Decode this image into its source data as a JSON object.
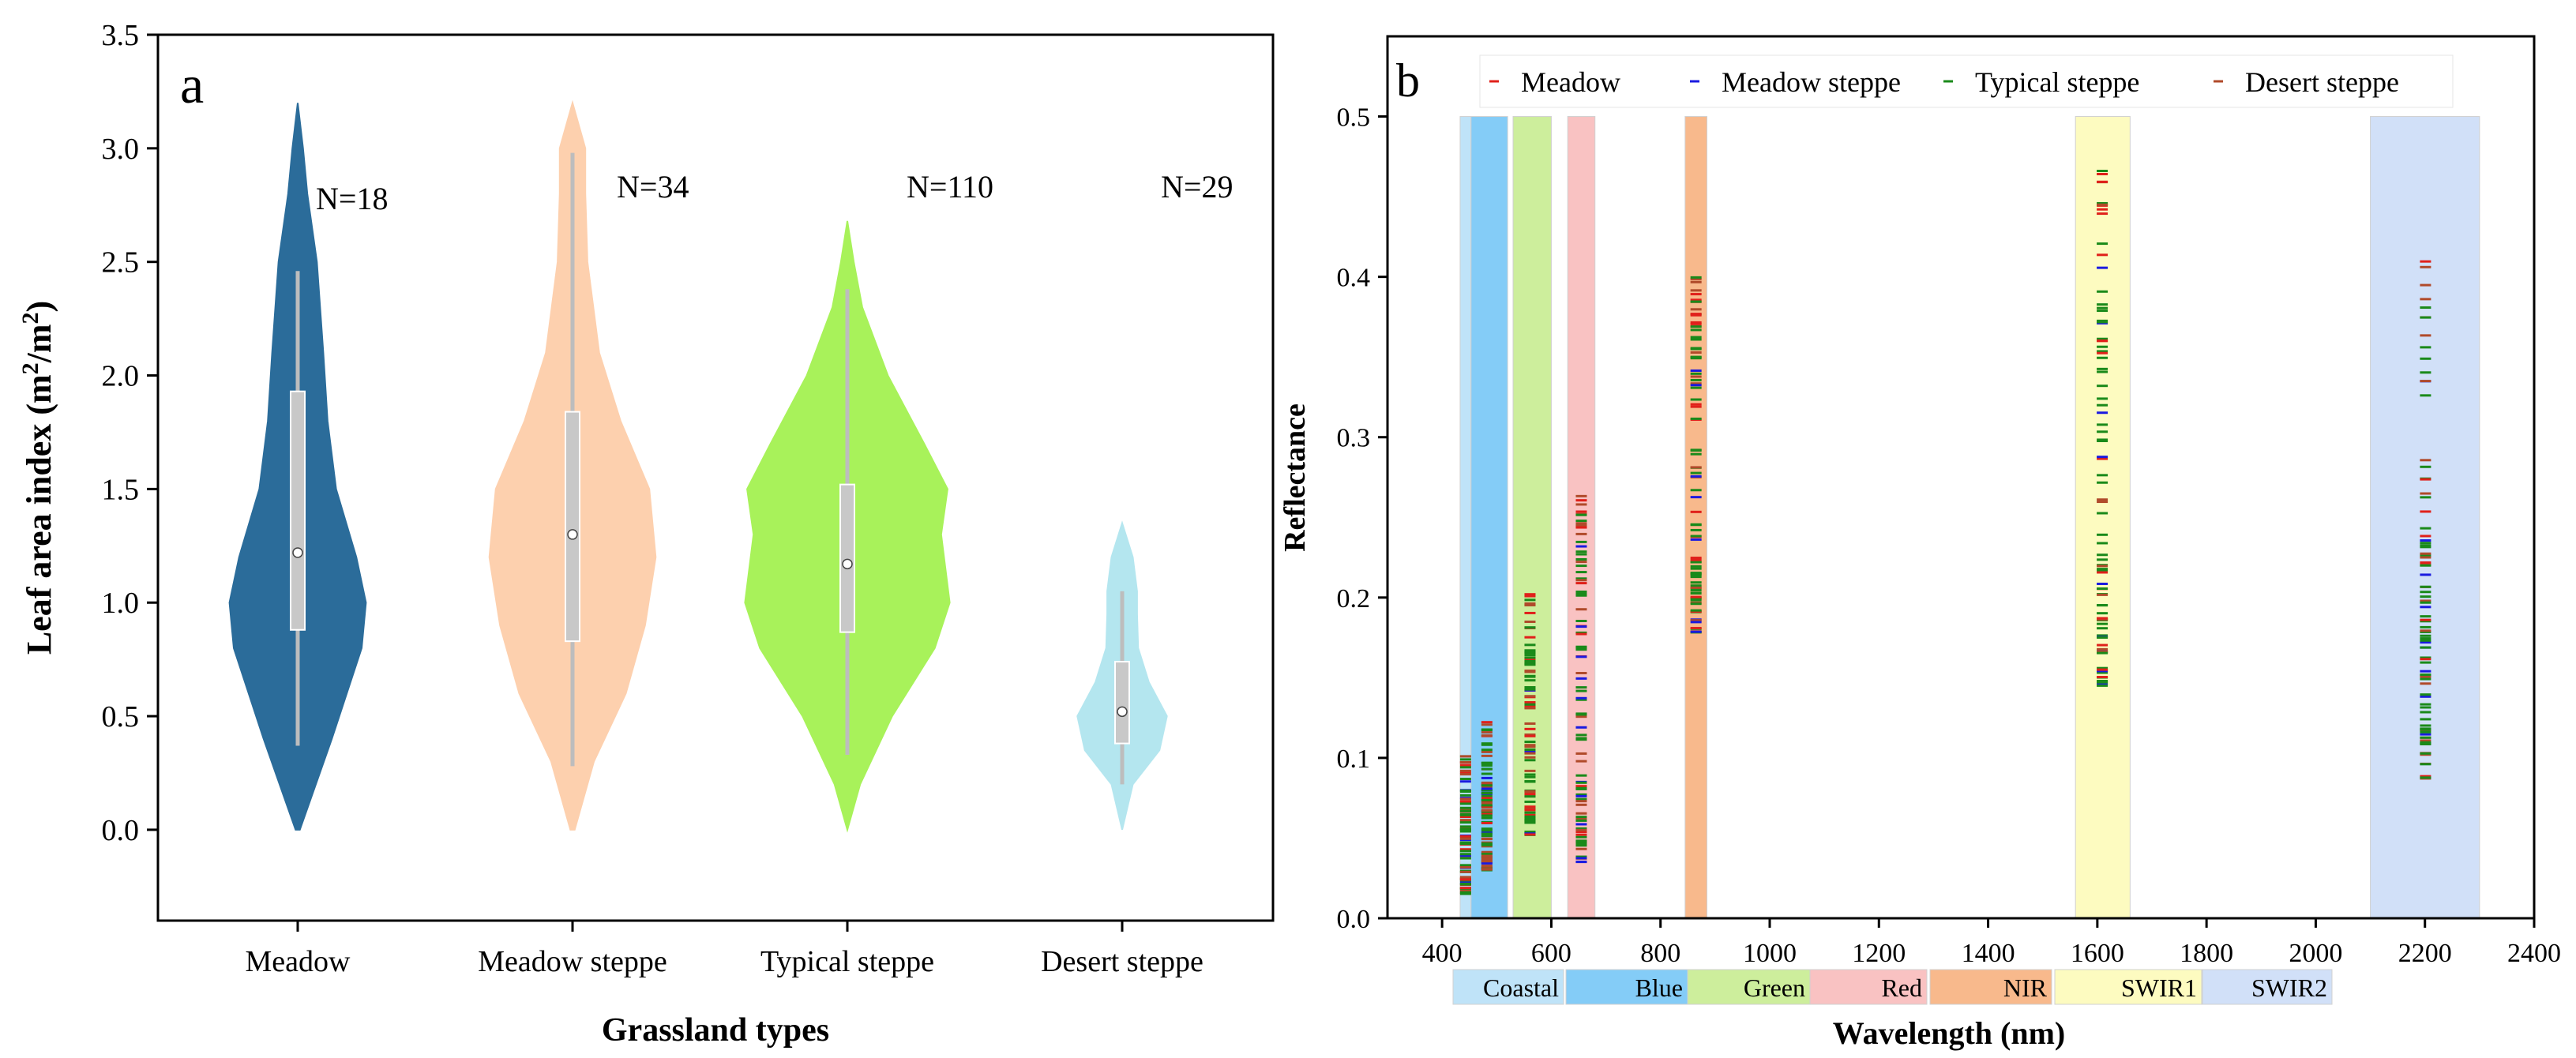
{
  "chart_data": [
    {
      "type": "violin",
      "panel_label": "a",
      "xlabel": "Grassland types",
      "ylabel_prefix": "Leaf area index (m",
      "ylabel_mid": "/m",
      "ylabel_suffix": ")",
      "ylabel_sup": "2",
      "ylim": [
        -0.4,
        3.5
      ],
      "yticks": [
        0.0,
        0.5,
        1.0,
        1.5,
        2.0,
        2.5,
        3.0,
        3.5
      ],
      "ytick_labels": [
        "0.0",
        "0.5",
        "1.0",
        "1.5",
        "2.0",
        "2.5",
        "3.0",
        "3.5"
      ],
      "categories": [
        "Meadow",
        "Meadow steppe",
        "Typical steppe",
        "Desert steppe"
      ],
      "series": [
        {
          "name": "Meadow",
          "n_label": "N=18",
          "color": "#2b6c9a",
          "box_q1": 0.88,
          "box_q3": 1.93,
          "median": 1.22,
          "whisker_low": 0.37,
          "whisker_high": 2.46,
          "profile": [
            [
              0.0,
              0.02
            ],
            [
              0.4,
              0.32
            ],
            [
              0.8,
              0.6
            ],
            [
              1.0,
              0.64
            ],
            [
              1.2,
              0.55
            ],
            [
              1.5,
              0.36
            ],
            [
              1.8,
              0.28
            ],
            [
              2.1,
              0.24
            ],
            [
              2.5,
              0.18
            ],
            [
              2.8,
              0.09
            ],
            [
              3.0,
              0.05
            ],
            [
              3.2,
              0.0
            ]
          ]
        },
        {
          "name": "Meadow steppe",
          "n_label": "N=34",
          "color": "#fdd0ae",
          "box_q1": 0.83,
          "box_q3": 1.84,
          "median": 1.3,
          "whisker_low": 0.28,
          "whisker_high": 2.98,
          "profile": [
            [
              0.0,
              0.02
            ],
            [
              0.3,
              0.2
            ],
            [
              0.6,
              0.5
            ],
            [
              0.9,
              0.68
            ],
            [
              1.2,
              0.78
            ],
            [
              1.5,
              0.72
            ],
            [
              1.8,
              0.45
            ],
            [
              2.1,
              0.25
            ],
            [
              2.5,
              0.14
            ],
            [
              2.8,
              0.12
            ],
            [
              3.0,
              0.12
            ],
            [
              3.2,
              0.0
            ]
          ]
        },
        {
          "name": "Typical steppe",
          "n_label": "N=110",
          "color": "#a8f25a",
          "box_q1": 0.87,
          "box_q3": 1.52,
          "median": 1.17,
          "whisker_low": 0.33,
          "whisker_high": 2.38,
          "profile": [
            [
              0.0,
              0.0
            ],
            [
              0.2,
              0.12
            ],
            [
              0.5,
              0.42
            ],
            [
              0.8,
              0.82
            ],
            [
              1.0,
              0.96
            ],
            [
              1.3,
              0.88
            ],
            [
              1.5,
              0.94
            ],
            [
              1.7,
              0.72
            ],
            [
              2.0,
              0.38
            ],
            [
              2.3,
              0.14
            ],
            [
              2.5,
              0.06
            ],
            [
              2.68,
              0.0
            ]
          ]
        },
        {
          "name": "Desert steppe",
          "n_label": "N=29",
          "color": "#b4e6ef",
          "box_q1": 0.38,
          "box_q3": 0.74,
          "median": 0.52,
          "whisker_low": 0.2,
          "whisker_high": 1.05,
          "profile": [
            [
              0.0,
              0.0
            ],
            [
              0.2,
              0.1
            ],
            [
              0.35,
              0.35
            ],
            [
              0.5,
              0.42
            ],
            [
              0.65,
              0.25
            ],
            [
              0.8,
              0.15
            ],
            [
              0.95,
              0.14
            ],
            [
              1.05,
              0.14
            ],
            [
              1.2,
              0.1
            ],
            [
              1.35,
              0.0
            ]
          ]
        }
      ]
    },
    {
      "type": "scatter",
      "panel_label": "b",
      "xlabel": "Wavelength (nm)",
      "ylabel": "Reflectance",
      "xlim": [
        300,
        2400
      ],
      "ylim": [
        0.0,
        0.55
      ],
      "xticks": [
        400,
        600,
        800,
        1000,
        1200,
        1400,
        1600,
        1800,
        2000,
        2200,
        2400
      ],
      "xtick_labels": [
        "400",
        "600",
        "800",
        "1000",
        "1200",
        "1400",
        "1600",
        "1800",
        "2000",
        "2200",
        "2400"
      ],
      "yticks": [
        0.0,
        0.1,
        0.2,
        0.3,
        0.4,
        0.5
      ],
      "ytick_labels": [
        "0.0",
        "0.1",
        "0.2",
        "0.3",
        "0.4",
        "0.5"
      ],
      "legend": [
        {
          "name": "Meadow",
          "color": "#e0201a"
        },
        {
          "name": "Meadow steppe",
          "color": "#1a1ae0"
        },
        {
          "name": "Typical steppe",
          "color": "#1a8a1a"
        },
        {
          "name": "Desert steppe",
          "color": "#b04a2a"
        }
      ],
      "bands": [
        {
          "name": "Coastal",
          "x0": 433,
          "x1": 453,
          "color": "#bfe3f8"
        },
        {
          "name": "Blue",
          "x0": 453,
          "x1": 520,
          "color": "#84ccf7"
        },
        {
          "name": "Green",
          "x0": 530,
          "x1": 600,
          "color": "#cdee9c"
        },
        {
          "name": "Red",
          "x0": 630,
          "x1": 680,
          "color": "#f9c2c2"
        },
        {
          "name": "NIR",
          "x0": 845,
          "x1": 885,
          "color": "#f8b98c"
        },
        {
          "name": "SWIR1",
          "x0": 1560,
          "x1": 1660,
          "color": "#fdfbc0"
        },
        {
          "name": "SWIR2",
          "x0": 2100,
          "x1": 2300,
          "color": "#d1e0f8"
        }
      ],
      "band_ymax": 0.5,
      "point_columns": [
        {
          "x": 443,
          "ymin": 0.015,
          "ymax": 0.102
        },
        {
          "x": 482,
          "ymin": 0.03,
          "ymax": 0.127
        },
        {
          "x": 561,
          "ymin": 0.052,
          "ymax": 0.205
        },
        {
          "x": 655,
          "ymin": 0.035,
          "ymax": 0.268
        },
        {
          "x": 865,
          "ymin": 0.178,
          "ymax": 0.402
        },
        {
          "x": 1609,
          "ymin": 0.145,
          "ymax": 0.472
        },
        {
          "x": 2201,
          "ymin": 0.087,
          "ymax": 0.412
        }
      ]
    }
  ]
}
